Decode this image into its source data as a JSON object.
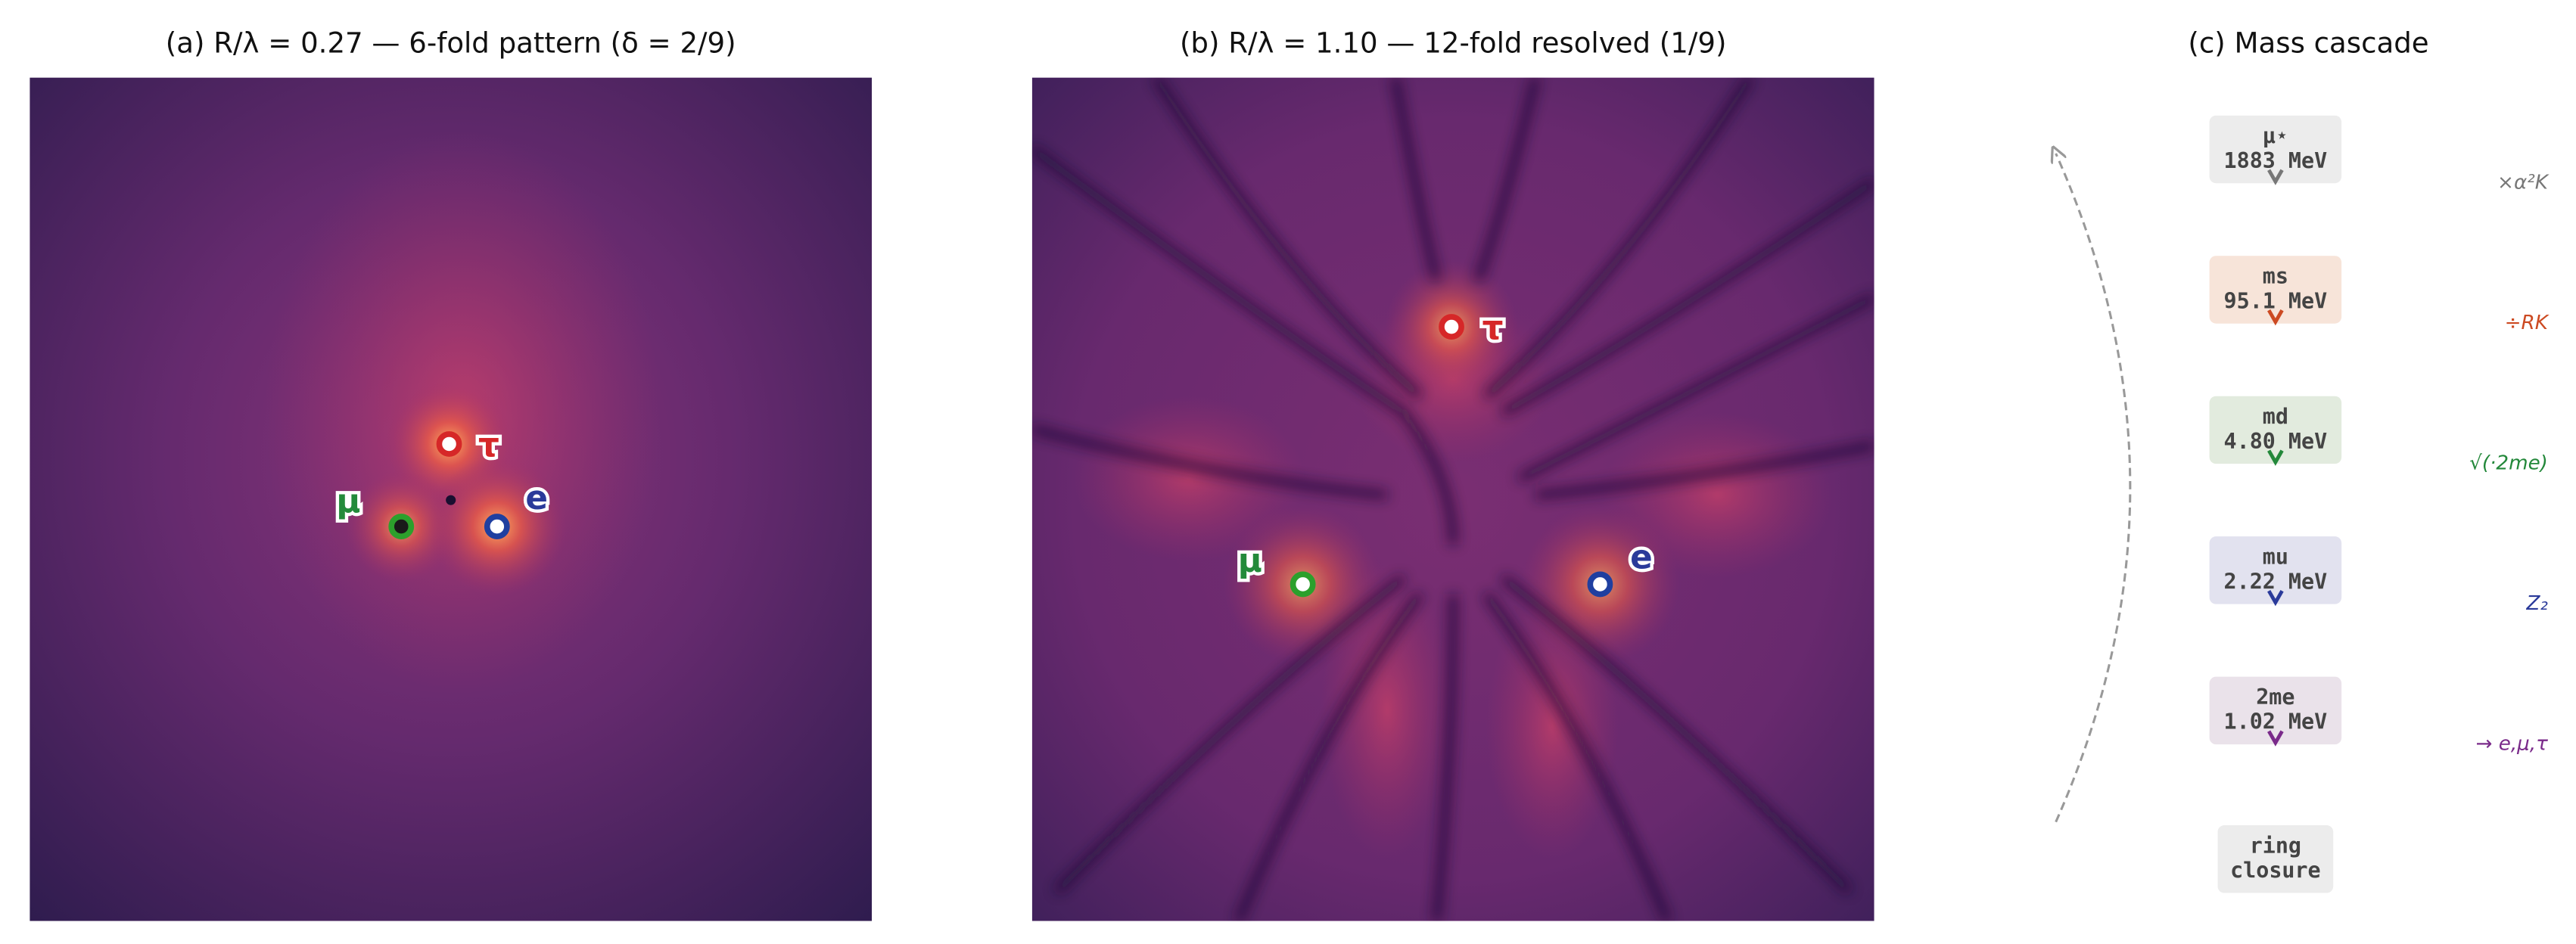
{
  "panels": [
    {
      "title": "(a)  R/λ = 0.27  —  6-fold pattern (δ = 2/9)",
      "markers": [
        {
          "label": "τ"
        },
        {
          "label": "μ"
        },
        {
          "label": "e"
        }
      ]
    },
    {
      "title": "(b)  R/λ = 1.10  —  12-fold resolved (1/9)",
      "markers": [
        {
          "label": "τ"
        },
        {
          "label": "μ"
        },
        {
          "label": "e"
        }
      ]
    }
  ],
  "cascade": {
    "title": "(c)  Mass cascade",
    "boxes": [
      {
        "lines": [
          "μ⋆",
          "1883 MeV"
        ]
      },
      {
        "lines": [
          "ms",
          "95.1 MeV"
        ]
      },
      {
        "lines": [
          "md",
          "4.80 MeV"
        ]
      },
      {
        "lines": [
          "mu",
          "2.22 MeV"
        ]
      },
      {
        "lines": [
          "2me",
          "1.02 MeV"
        ]
      },
      {
        "lines": [
          "ring",
          "closure"
        ]
      }
    ],
    "operations": [
      "×α²K",
      "÷RK",
      "√(·2me)",
      "Z₂",
      "→ e,μ,τ"
    ]
  }
}
